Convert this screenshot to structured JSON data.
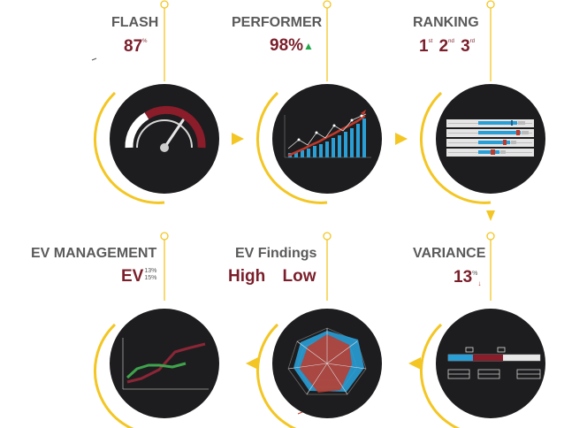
{
  "steps": {
    "flash": {
      "label": "FLASH",
      "value": "87",
      "value_sup": "%"
    },
    "performer": {
      "label": "PERFORMER",
      "value": "98%"
    },
    "ranking": {
      "label": "RANKING",
      "r1": "1",
      "r1_sup": "st",
      "r2": "2",
      "r2_sup": "nd",
      "r3": "3",
      "r3_sup": "rd"
    },
    "variance": {
      "label": "VARIANCE",
      "value": "13",
      "value_sup": "%"
    },
    "findings": {
      "label": "EV Findings",
      "high": "High",
      "low": "Low"
    },
    "ev": {
      "label": "EV MANAGEMENT",
      "value": "EV",
      "top": "13%",
      "bottom": "15%"
    }
  },
  "colors": {
    "accent_yellow": "#f3c623",
    "maroon": "#7a1f2b",
    "circle_dark": "#1d1d1f",
    "bar_blue": "#2a9fd6",
    "bar_red": "#c0392b",
    "up_green": "#22a84a"
  }
}
